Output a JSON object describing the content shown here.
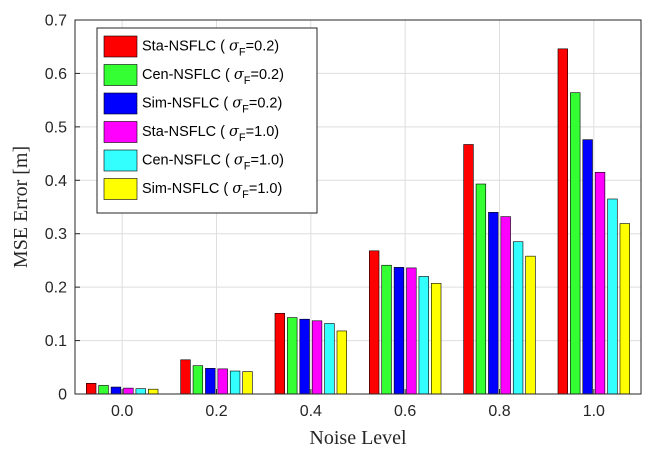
{
  "chart_data": {
    "type": "bar",
    "xlabel": "Noise Level",
    "ylabel": "MSE Error [m]",
    "categories": [
      "0.0",
      "0.2",
      "0.4",
      "0.6",
      "0.8",
      "1.0"
    ],
    "ylim": [
      0,
      0.7
    ],
    "yticks": [
      "0",
      "0.1",
      "0.2",
      "0.3",
      "0.4",
      "0.5",
      "0.6",
      "0.7"
    ],
    "grid": true,
    "legend_position": "top-left",
    "series": [
      {
        "name": "Sta-NSFLC ( σF=0.2)",
        "color": "#ff0000",
        "values": [
          0.02,
          0.064,
          0.151,
          0.268,
          0.467,
          0.646
        ]
      },
      {
        "name": "Cen-NSFLC ( σF=0.2)",
        "color": "#33ff33",
        "values": [
          0.016,
          0.053,
          0.143,
          0.241,
          0.393,
          0.564
        ]
      },
      {
        "name": "Sim-NSFLC ( σF=0.2)",
        "color": "#0000ff",
        "values": [
          0.013,
          0.048,
          0.14,
          0.237,
          0.34,
          0.476
        ]
      },
      {
        "name": "Sta-NSFLC ( σF=1.0)",
        "color": "#ff00ff",
        "values": [
          0.011,
          0.047,
          0.137,
          0.236,
          0.332,
          0.415
        ]
      },
      {
        "name": "Cen-NSFLC ( σF=1.0)",
        "color": "#33ffff",
        "values": [
          0.01,
          0.043,
          0.132,
          0.22,
          0.285,
          0.365
        ]
      },
      {
        "name": "Sim-NSFLC ( σF=1.0)",
        "color": "#ffff00",
        "values": [
          0.009,
          0.042,
          0.118,
          0.207,
          0.258,
          0.319
        ]
      }
    ],
    "legend": [
      {
        "prefix": "Sta-NSFLC ( ",
        "sym": "σ",
        "sub": "F",
        "suffix": "=0.2)"
      },
      {
        "prefix": "Cen-NSFLC ( ",
        "sym": "σ",
        "sub": "F",
        "suffix": "=0.2)"
      },
      {
        "prefix": "Sim-NSFLC ( ",
        "sym": "σ",
        "sub": "F",
        "suffix": "=0.2)"
      },
      {
        "prefix": "Sta-NSFLC ( ",
        "sym": "σ",
        "sub": "F",
        "suffix": "=1.0)"
      },
      {
        "prefix": "Cen-NSFLC ( ",
        "sym": "σ",
        "sub": "F",
        "suffix": "=1.0)"
      },
      {
        "prefix": "Sim-NSFLC ( ",
        "sym": "σ",
        "sub": "F",
        "suffix": "=1.0)"
      }
    ]
  }
}
